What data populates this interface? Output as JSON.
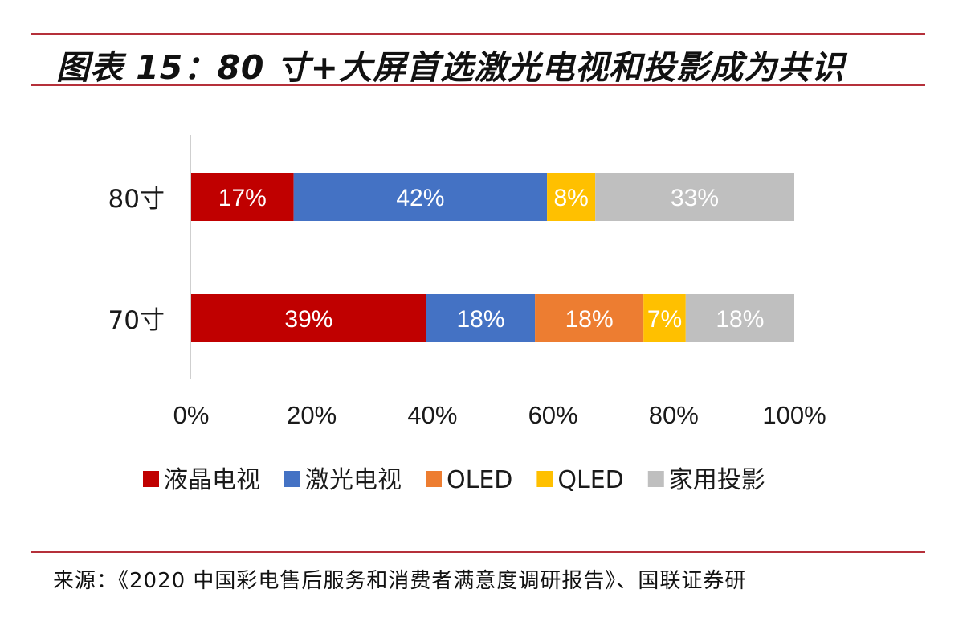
{
  "figure": {
    "title": "图表 15：80 寸+大屏首选激光电视和投影成为共识",
    "source": "来源：《2020 中国彩电售后服务和消费者满意度调研报告》、国联证券研"
  },
  "chart_data": {
    "type": "bar",
    "orientation": "horizontal",
    "stacked": true,
    "normalized": true,
    "categories": [
      "80寸",
      "70寸"
    ],
    "series": [
      {
        "name": "液晶电视",
        "color": "#c00000",
        "values": [
          17,
          39
        ]
      },
      {
        "name": "激光电视",
        "color": "#4472c4",
        "values": [
          42,
          18
        ]
      },
      {
        "name": "OLED",
        "color": "#ed7d31",
        "values": [
          0,
          18
        ]
      },
      {
        "name": "QLED",
        "color": "#ffc000",
        "values": [
          8,
          7
        ]
      },
      {
        "name": "家用投影",
        "color": "#bfbfbf",
        "values": [
          33,
          18
        ]
      }
    ],
    "data_labels": [
      [
        "17%",
        "42%",
        "",
        "8%",
        "33%"
      ],
      [
        "39%",
        "18%",
        "18%",
        "7%",
        "18%"
      ]
    ],
    "x_ticks": [
      "0%",
      "20%",
      "40%",
      "60%",
      "80%",
      "100%"
    ],
    "xlim": [
      0,
      100
    ],
    "grid": false,
    "legend_position": "bottom"
  }
}
